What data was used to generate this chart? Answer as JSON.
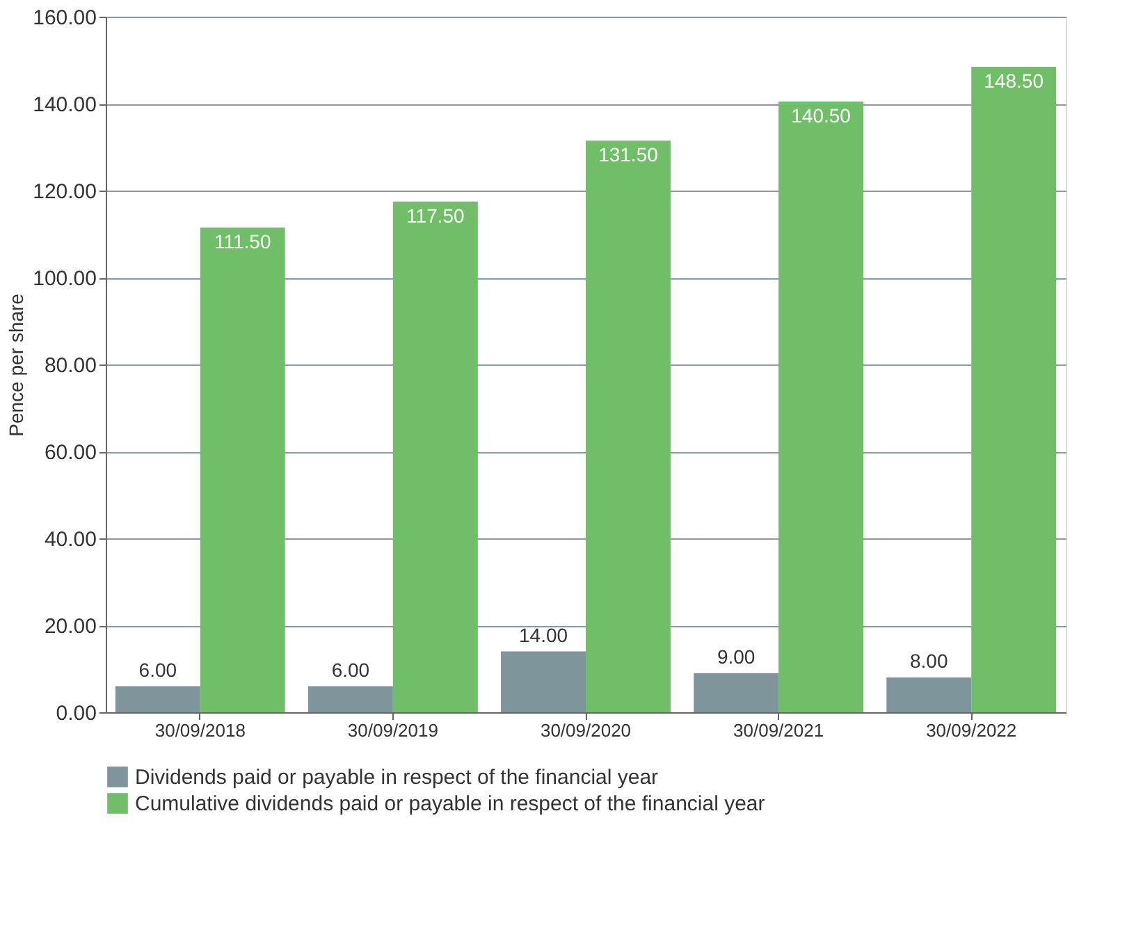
{
  "chart_data": {
    "type": "bar",
    "ylabel": "Pence per share",
    "categories": [
      "30/09/2018",
      "30/09/2019",
      "30/09/2020",
      "30/09/2021",
      "30/09/2022"
    ],
    "series": [
      {
        "name": "Dividends paid or payable in respect of the financial year",
        "color": "#7f959c",
        "values": [
          6.0,
          6.0,
          14.0,
          9.0,
          8.0
        ],
        "value_labels": [
          "6.00",
          "6.00",
          "14.00",
          "9.00",
          "8.00"
        ]
      },
      {
        "name": "Cumulative dividends paid or payable in respect of the financial year",
        "color": "#70bf68",
        "values": [
          111.5,
          117.5,
          131.5,
          140.5,
          148.5
        ],
        "value_labels": [
          "111.50",
          "117.50",
          "131.50",
          "140.50",
          "148.50"
        ]
      }
    ],
    "ylim": [
      0,
      160
    ],
    "yticks": [
      {
        "value": 0,
        "label": "0.00"
      },
      {
        "value": 20,
        "label": "20.00"
      },
      {
        "value": 40,
        "label": "40.00"
      },
      {
        "value": 60,
        "label": "60.00"
      },
      {
        "value": 80,
        "label": "80.00"
      },
      {
        "value": 100,
        "label": "100.00"
      },
      {
        "value": 120,
        "label": "120.00"
      },
      {
        "value": 140,
        "label": "140.00"
      },
      {
        "value": 160,
        "label": "160.00"
      }
    ],
    "grid": "y",
    "legend": "bottom"
  }
}
